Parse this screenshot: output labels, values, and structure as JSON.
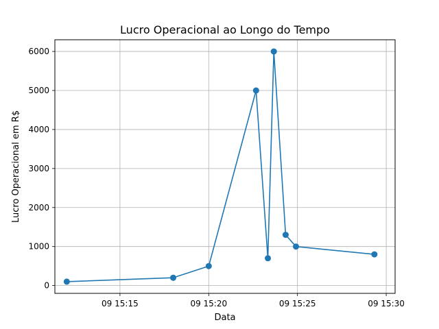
{
  "chart_data": {
    "type": "line",
    "title": "Lucro Operacional ao Longo do Tempo",
    "xlabel": "Data",
    "ylabel": "Lucro Operacional em R$",
    "x_axis_type": "time",
    "xlim": [
      "09 15:11:20",
      "09 15:30:30"
    ],
    "ylim": [
      -200,
      6300
    ],
    "x_ticks": [
      "09 15:15",
      "09 15:20",
      "09 15:25",
      "09 15:30"
    ],
    "y_ticks": [
      0,
      1000,
      2000,
      3000,
      4000,
      5000,
      6000
    ],
    "grid": true,
    "color": "#1f77b4",
    "marker": "circle",
    "x": [
      "09 15:12:00",
      "09 15:18:00",
      "09 15:20:00",
      "09 15:22:40",
      "09 15:23:20",
      "09 15:23:40",
      "09 15:24:20",
      "09 15:24:55",
      "09 15:29:20"
    ],
    "y": [
      100,
      200,
      500,
      5000,
      700,
      6000,
      1300,
      1000,
      800
    ]
  }
}
